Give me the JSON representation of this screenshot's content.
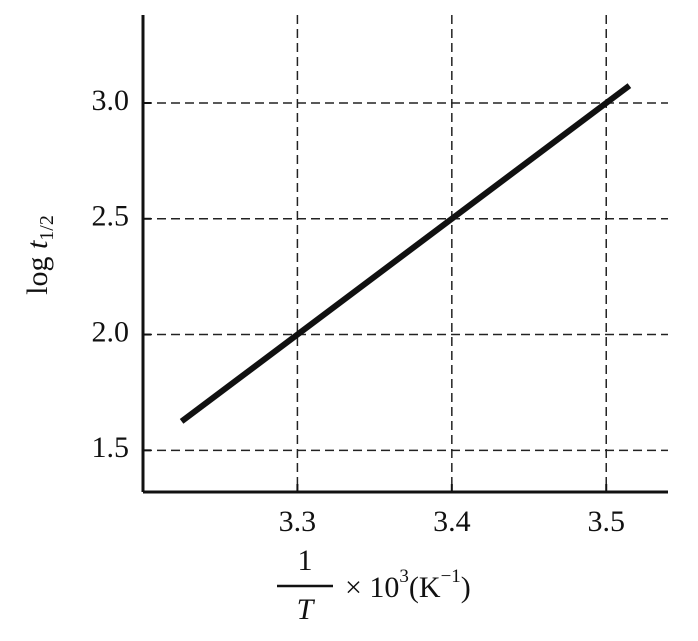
{
  "chart_data": {
    "type": "line",
    "x": [
      3.225,
      3.515
    ],
    "values": [
      1.625,
      3.075
    ],
    "color": "#111111",
    "xlim": [
      3.2,
      3.54
    ],
    "ylim": [
      1.32,
      3.38
    ],
    "xticks": [
      3.3,
      3.4,
      3.5
    ],
    "yticks": [
      1.5,
      {
        "value": 2,
        "label": "2.0"
      },
      2.5,
      {
        "value": 3,
        "label": "3.0"
      }
    ],
    "grid": true,
    "y_label": {
      "prefix": "log",
      "var": "t",
      "sub": "1/2"
    },
    "x_label": {
      "numerator": "1",
      "denominator": "T",
      "times": "× 10",
      "exp": "3",
      "unit": "(K",
      "unit_exp": "−1",
      "close": ")"
    }
  }
}
